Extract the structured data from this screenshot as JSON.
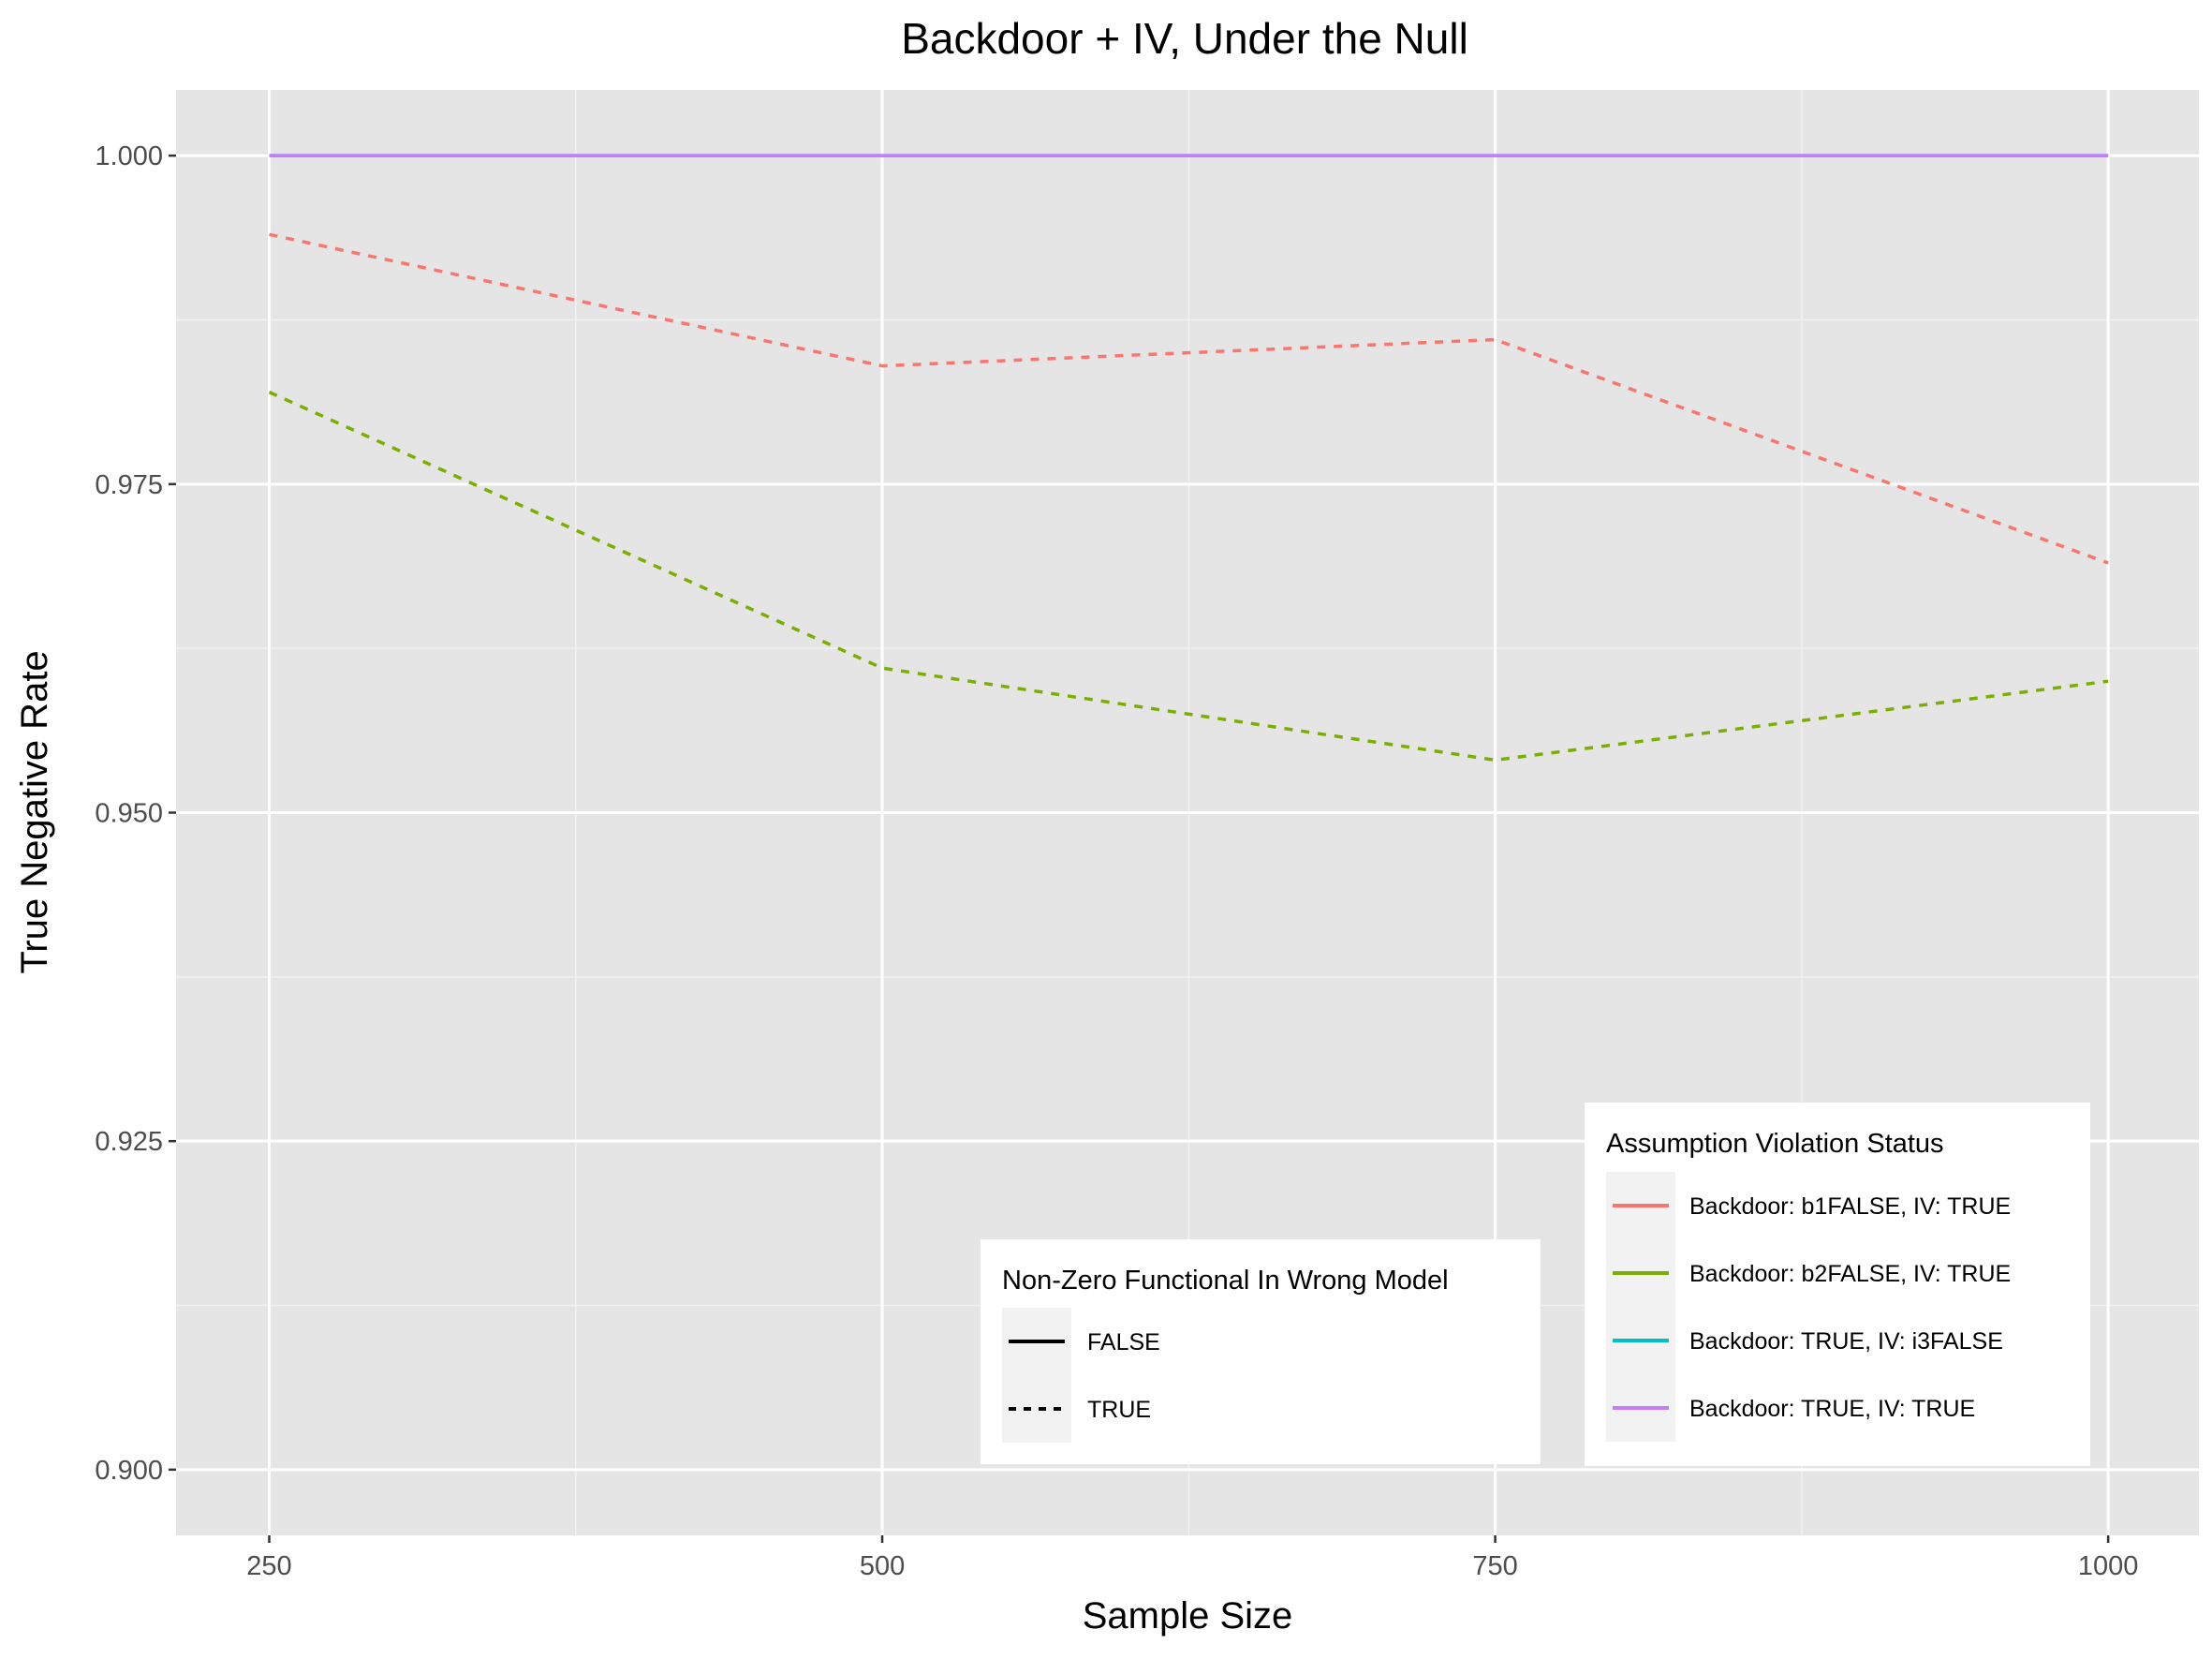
{
  "chart_data": {
    "type": "line",
    "title": "Backdoor + IV, Under the Null",
    "xlabel": "Sample Size",
    "ylabel": "True Negative Rate",
    "x": [
      250,
      500,
      750,
      1000
    ],
    "x_tick_labels": [
      "250",
      "500",
      "750",
      "1000"
    ],
    "y_ticks": [
      0.9,
      0.925,
      0.95,
      0.975,
      1.0
    ],
    "y_tick_labels": [
      "0.900",
      "0.925",
      "0.950",
      "0.975",
      "1.000"
    ],
    "xlim": [
      212,
      1037
    ],
    "ylim": [
      0.895,
      1.005
    ],
    "grid": true,
    "background": "#e5e5e5",
    "series": [
      {
        "name": "Backdoor: b1FALSE, IV: TRUE",
        "color": "#f8766d",
        "linetype": "dashed",
        "non_zero_functional": "TRUE",
        "values": [
          0.994,
          0.984,
          0.986,
          0.969
        ]
      },
      {
        "name": "Backdoor: b2FALSE, IV: TRUE",
        "color": "#7cae00",
        "linetype": "dashed",
        "non_zero_functional": "TRUE",
        "values": [
          0.982,
          0.961,
          0.954,
          0.96
        ]
      },
      {
        "name": "Backdoor: TRUE, IV: i3FALSE",
        "color": "#00bfc4",
        "linetype": "solid",
        "non_zero_functional": "FALSE",
        "values": [
          1.0,
          1.0,
          1.0,
          1.0
        ]
      },
      {
        "name": "Backdoor: TRUE, IV: TRUE",
        "color": "#c77cff",
        "linetype": "solid",
        "non_zero_functional": "FALSE",
        "values": [
          1.0,
          1.0,
          1.0,
          1.0
        ]
      }
    ],
    "legends": {
      "linetype": {
        "title": "Non-Zero Functional In Wrong Model",
        "placement": "bottom-center",
        "entries": [
          {
            "label": "FALSE",
            "linetype": "solid"
          },
          {
            "label": "TRUE",
            "linetype": "dashed"
          }
        ]
      },
      "color": {
        "title": "Assumption Violation Status",
        "placement": "bottom-right",
        "entries": [
          {
            "label": "Backdoor: b1FALSE, IV: TRUE",
            "color": "#f8766d"
          },
          {
            "label": "Backdoor: b2FALSE, IV: TRUE",
            "color": "#7cae00"
          },
          {
            "label": "Backdoor: TRUE, IV: i3FALSE",
            "color": "#00bfc4"
          },
          {
            "label": "Backdoor: TRUE, IV: TRUE",
            "color": "#c77cff"
          }
        ]
      }
    }
  }
}
